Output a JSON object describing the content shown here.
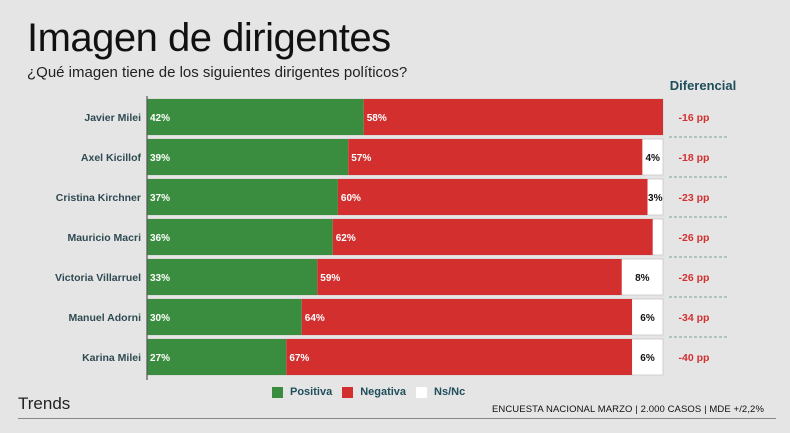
{
  "title": "Imagen de dirigentes",
  "subtitle": "¿Qué imagen tiene de los siguientes dirigentes políticos?",
  "diff_header": "Diferencial",
  "brand": "Trends",
  "source": "ENCUESTA NACIONAL MARZO | 2.000 CASOS | MDE +/2,2%",
  "colors": {
    "positiva": "#3a8d3e",
    "negativa": "#d32f2f",
    "nsnc": "#ffffff",
    "diff_text": "#d32f2f",
    "label_text": "#2e4a52"
  },
  "legend": [
    {
      "key": "positiva",
      "label": "Positiva"
    },
    {
      "key": "negativa",
      "label": "Negativa"
    },
    {
      "key": "nsnc",
      "label": "Ns/Nc"
    }
  ],
  "chart_data": {
    "type": "bar",
    "orientation": "horizontal",
    "stacked": true,
    "title": "Imagen de dirigentes",
    "subtitle": "¿Qué imagen tiene de los siguientes dirigentes políticos?",
    "xlim": [
      0,
      100
    ],
    "unit": "%",
    "legend_position": "bottom",
    "categories": [
      "Javier Milei",
      "Axel Kicillof",
      "Cristina Kirchner",
      "Mauricio Macri",
      "Victoria Villarruel",
      "Manuel Adorni",
      "Karina Milei"
    ],
    "series": [
      {
        "name": "Positiva",
        "values": [
          42,
          39,
          37,
          36,
          33,
          30,
          27
        ],
        "labels": [
          "42%",
          "39%",
          "37%",
          "36%",
          "33%",
          "30%",
          "27%"
        ]
      },
      {
        "name": "Negativa",
        "values": [
          58,
          57,
          60,
          62,
          59,
          64,
          67
        ],
        "labels": [
          "58%",
          "57%",
          "60%",
          "62%",
          "59%",
          "64%",
          "67%"
        ]
      },
      {
        "name": "Ns/Nc",
        "values": [
          0,
          4,
          3,
          2,
          8,
          6,
          6
        ],
        "labels": [
          "",
          "4%",
          "3%",
          "",
          "8%",
          "6%",
          "6%"
        ]
      }
    ],
    "diferencial": [
      "-16 pp",
      "-18 pp",
      "-23 pp",
      "-26 pp",
      "-26 pp",
      "-34 pp",
      "-40 pp"
    ]
  }
}
